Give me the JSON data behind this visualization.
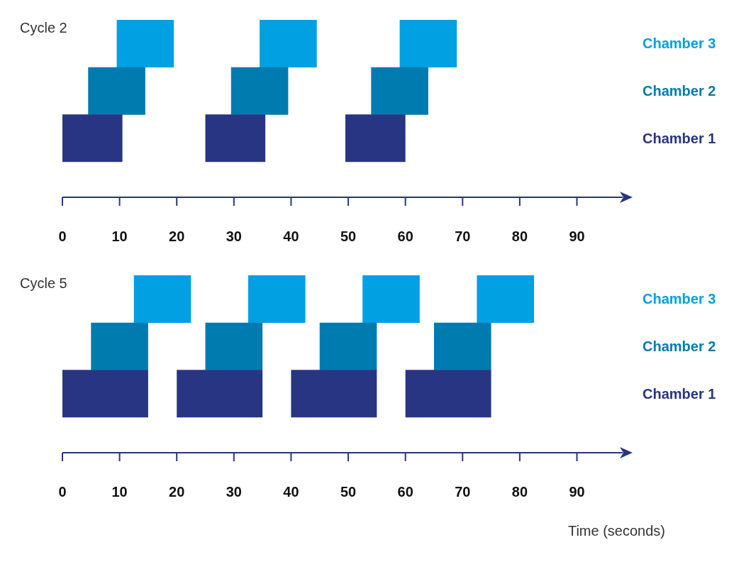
{
  "chart_data": [
    {
      "type": "bar",
      "orientation": "horizontal",
      "title": "Cycle 2",
      "categories": [
        "Chamber 3",
        "Chamber 2",
        "Chamber 1"
      ],
      "xlim": [
        0,
        98
      ],
      "xticks": [
        0,
        10,
        20,
        30,
        40,
        50,
        60,
        70,
        80,
        90
      ],
      "series": [
        {
          "colors": [
            "#00a0e3",
            "#007bb0",
            "#283583"
          ],
          "base": [
            9.5,
            4.5,
            0
          ],
          "values": [
            10,
            10,
            10.5
          ]
        },
        {
          "colors": [
            "#00a0e3",
            "#007bb0",
            "#283583"
          ],
          "base": [
            34.5,
            29.5,
            25
          ],
          "values": [
            10,
            10,
            10.5
          ]
        },
        {
          "colors": [
            "#00a0e3",
            "#007bb0",
            "#283583"
          ],
          "base": [
            59,
            54,
            49.5
          ],
          "values": [
            10,
            10,
            10.5
          ]
        }
      ]
    },
    {
      "type": "bar",
      "orientation": "horizontal",
      "title": "Cycle 5",
      "xlabel": "Time (seconds)",
      "categories": [
        "Chamber 3",
        "Chamber 2",
        "Chamber 1"
      ],
      "xlim": [
        0,
        98
      ],
      "xticks": [
        0,
        10,
        20,
        30,
        40,
        50,
        60,
        70,
        80,
        90
      ],
      "series": [
        {
          "colors": [
            "#00a0e3",
            "#007bb0",
            "#283583"
          ],
          "base": [
            12.5,
            5,
            0
          ],
          "values": [
            10,
            10,
            15
          ]
        },
        {
          "colors": [
            "#00a0e3",
            "#007bb0",
            "#283583"
          ],
          "base": [
            32.5,
            25,
            20
          ],
          "values": [
            10,
            10,
            15
          ]
        },
        {
          "colors": [
            "#00a0e3",
            "#007bb0",
            "#283583"
          ],
          "base": [
            52.5,
            45,
            40
          ],
          "values": [
            10,
            10,
            15
          ]
        },
        {
          "colors": [
            "#00a0e3",
            "#007bb0",
            "#283583"
          ],
          "base": [
            72.5,
            65,
            60
          ],
          "values": [
            10,
            10,
            15
          ]
        }
      ]
    }
  ]
}
